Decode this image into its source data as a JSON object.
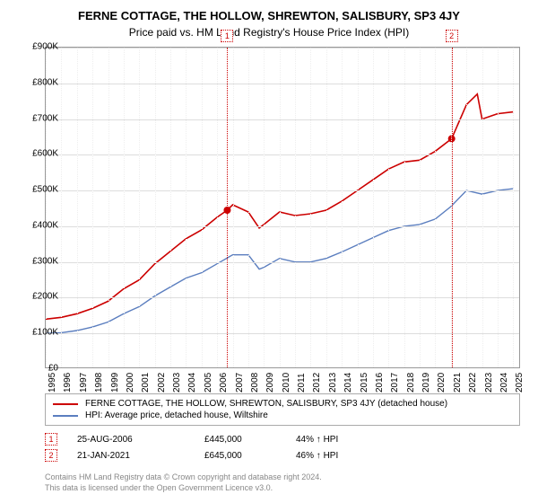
{
  "title": "FERNE COTTAGE, THE HOLLOW, SHREWTON, SALISBURY, SP3 4JY",
  "subtitle": "Price paid vs. HM Land Registry's House Price Index (HPI)",
  "chart": {
    "type": "line",
    "background_color": "#ffffff",
    "grid_color": "#dddddd",
    "border_color": "#999999",
    "xlim": [
      1995,
      2025.5
    ],
    "ylim": [
      0,
      900000
    ],
    "ytick_step": 100000,
    "ylabels": [
      "£0",
      "£100K",
      "£200K",
      "£300K",
      "£400K",
      "£500K",
      "£600K",
      "£700K",
      "£800K",
      "£900K"
    ],
    "xticks": [
      1995,
      1996,
      1997,
      1998,
      1999,
      2000,
      2001,
      2002,
      2003,
      2004,
      2005,
      2006,
      2007,
      2008,
      2009,
      2010,
      2011,
      2012,
      2013,
      2014,
      2015,
      2016,
      2017,
      2018,
      2019,
      2020,
      2021,
      2022,
      2023,
      2024,
      2025
    ],
    "label_fontsize": 10,
    "series": [
      {
        "name": "property",
        "label": "FERNE COTTAGE, THE HOLLOW, SHREWTON, SALISBURY, SP3 4JY (detached house)",
        "color": "#cc0000",
        "line_width": 1.6,
        "x": [
          1995,
          1996,
          1997,
          1998,
          1999,
          2000,
          2001,
          2002,
          2003,
          2004,
          2005,
          2006,
          2006.65,
          2007,
          2008,
          2008.7,
          2009,
          2010,
          2011,
          2012,
          2013,
          2014,
          2015,
          2016,
          2017,
          2018,
          2019,
          2020,
          2021.05,
          2021.5,
          2022,
          2022.7,
          2023,
          2024,
          2025
        ],
        "y": [
          140000,
          145000,
          155000,
          170000,
          190000,
          225000,
          250000,
          295000,
          330000,
          365000,
          390000,
          425000,
          445000,
          460000,
          440000,
          395000,
          405000,
          440000,
          430000,
          435000,
          445000,
          470000,
          500000,
          530000,
          560000,
          580000,
          585000,
          610000,
          645000,
          690000,
          740000,
          770000,
          700000,
          715000,
          720000
        ]
      },
      {
        "name": "hpi",
        "label": "HPI: Average price, detached house, Wiltshire",
        "color": "#5b7ebf",
        "line_width": 1.4,
        "x": [
          1995,
          1996,
          1997,
          1998,
          1999,
          2000,
          2001,
          2002,
          2003,
          2004,
          2005,
          2006,
          2007,
          2008,
          2008.7,
          2009,
          2010,
          2011,
          2012,
          2013,
          2014,
          2015,
          2016,
          2017,
          2018,
          2019,
          2020,
          2021,
          2022,
          2023,
          2024,
          2025
        ],
        "y": [
          100000,
          102000,
          108000,
          118000,
          132000,
          155000,
          175000,
          205000,
          230000,
          255000,
          270000,
          295000,
          320000,
          320000,
          280000,
          285000,
          310000,
          300000,
          300000,
          310000,
          328000,
          348000,
          368000,
          388000,
          400000,
          405000,
          420000,
          455000,
          500000,
          490000,
          500000,
          505000
        ]
      }
    ],
    "markers": [
      {
        "n": "1",
        "x": 2006.65,
        "y": 445000,
        "label_top": true
      },
      {
        "n": "2",
        "x": 2021.05,
        "y": 645000,
        "label_top": true
      }
    ]
  },
  "legend": {
    "items": [
      {
        "color": "#cc0000",
        "label_path": "chart.series.0.label"
      },
      {
        "color": "#5b7ebf",
        "label_path": "chart.series.1.label"
      }
    ]
  },
  "sales": [
    {
      "n": "1",
      "date": "25-AUG-2006",
      "price": "£445,000",
      "pct": "44% ↑ HPI"
    },
    {
      "n": "2",
      "date": "21-JAN-2021",
      "price": "£645,000",
      "pct": "46% ↑ HPI"
    }
  ],
  "footer": {
    "line1": "Contains HM Land Registry data © Crown copyright and database right 2024.",
    "line2": "This data is licensed under the Open Government Licence v3.0."
  }
}
